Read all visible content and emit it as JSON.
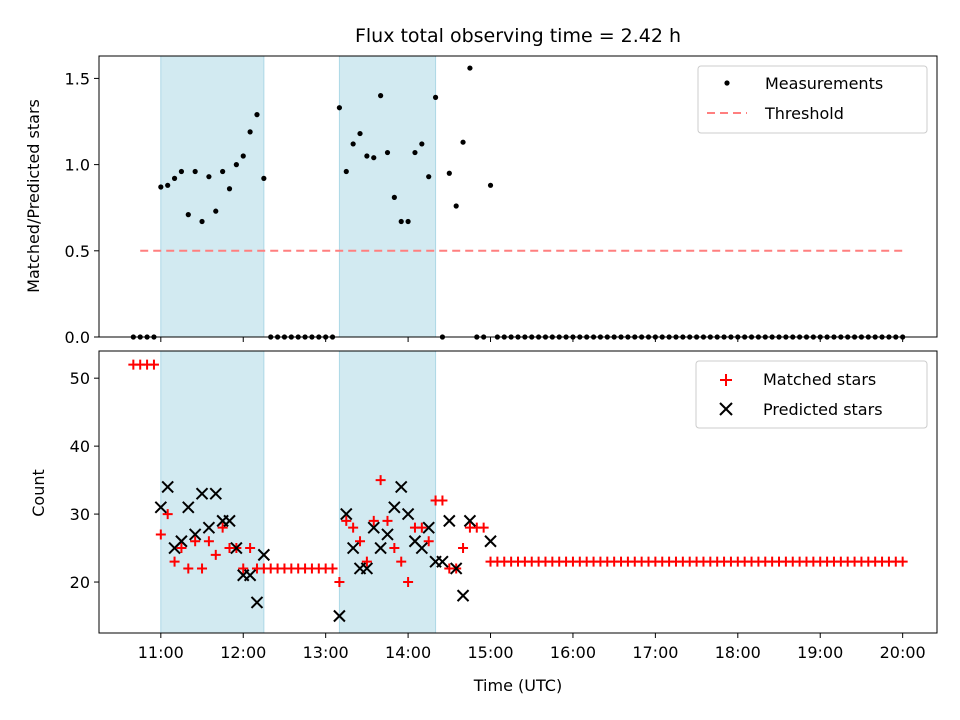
{
  "chart_data": [
    {
      "type": "scatter",
      "title": "Flux total observing time = 2.42 h",
      "xlabel": "",
      "ylabel": "Matched/Predicted stars",
      "ylim": [
        0,
        1.63
      ],
      "xlim": [
        "10:15",
        "20:25"
      ],
      "yticks": [
        "0.0",
        "0.5",
        "1.0",
        "1.5"
      ],
      "highlight_spans": [
        [
          "11:00",
          "12:15"
        ],
        [
          "13:10",
          "14:20"
        ]
      ],
      "highlight_color": "#add8e6",
      "legend_position": "top-right",
      "threshold": 0.5,
      "series": [
        {
          "name": "Measurements",
          "color": "#000000",
          "marker": "dot",
          "x": [
            "10:40",
            "10:45",
            "10:50",
            "10:55",
            "11:00",
            "11:05",
            "11:10",
            "11:15",
            "11:20",
            "11:25",
            "11:30",
            "11:35",
            "11:40",
            "11:45",
            "11:50",
            "11:55",
            "12:00",
            "12:05",
            "12:10",
            "12:15",
            "12:20",
            "12:25",
            "12:30",
            "12:35",
            "12:40",
            "12:45",
            "12:50",
            "12:55",
            "13:00",
            "13:05",
            "13:10",
            "13:15",
            "13:20",
            "13:25",
            "13:30",
            "13:35",
            "13:40",
            "13:45",
            "13:50",
            "13:55",
            "14:00",
            "14:05",
            "14:10",
            "14:15",
            "14:20",
            "14:25",
            "14:30",
            "14:35",
            "14:40",
            "14:45",
            "14:50",
            "14:55",
            "15:00",
            "15:05",
            "15:10",
            "15:15",
            "15:20",
            "15:25",
            "15:30",
            "15:35",
            "15:40",
            "15:45",
            "15:50",
            "15:55",
            "16:00",
            "16:05",
            "16:10",
            "16:15",
            "16:20",
            "16:25",
            "16:30",
            "16:35",
            "16:40",
            "16:45",
            "16:50",
            "16:55",
            "17:00",
            "17:05",
            "17:10",
            "17:15",
            "17:20",
            "17:25",
            "17:30",
            "17:35",
            "17:40",
            "17:45",
            "17:50",
            "17:55",
            "18:00",
            "18:05",
            "18:10",
            "18:15",
            "18:20",
            "18:25",
            "18:30",
            "18:35",
            "18:40",
            "18:45",
            "18:50",
            "18:55",
            "19:00",
            "19:05",
            "19:10",
            "19:15",
            "19:20",
            "19:25",
            "19:30",
            "19:35",
            "19:40",
            "19:45",
            "19:50",
            "19:55",
            "20:00"
          ],
          "y": [
            0,
            0,
            0,
            0,
            0.87,
            0.88,
            0.92,
            0.96,
            0.71,
            0.96,
            0.67,
            0.93,
            0.73,
            0.96,
            0.86,
            1.0,
            1.05,
            1.19,
            1.29,
            0.92,
            0,
            0,
            0,
            0,
            0,
            0,
            0,
            0,
            0,
            0,
            1.33,
            0.96,
            1.12,
            1.18,
            1.05,
            1.04,
            1.4,
            1.07,
            0.81,
            0.67,
            0.67,
            1.07,
            1.12,
            0.93,
            1.39,
            0,
            0.95,
            0.76,
            1.13,
            1.56,
            0,
            0,
            0.88,
            0,
            0,
            0,
            0,
            0,
            0,
            0,
            0,
            0,
            0,
            0,
            0,
            0,
            0,
            0,
            0,
            0,
            0,
            0,
            0,
            0,
            0,
            0,
            0,
            0,
            0,
            0,
            0,
            0,
            0,
            0,
            0,
            0,
            0,
            0,
            0,
            0,
            0,
            0,
            0,
            0,
            0,
            0,
            0,
            0,
            0,
            0,
            0,
            0,
            0,
            0,
            0,
            0,
            0,
            0,
            0,
            0,
            0,
            0,
            0
          ]
        },
        {
          "name": "Threshold",
          "color": "#ff7f7f",
          "marker": "dashed-line",
          "x": [
            "10:45",
            "20:00"
          ],
          "y": [
            0.5,
            0.5
          ]
        }
      ]
    },
    {
      "type": "scatter",
      "title": "",
      "xlabel": "Time (UTC)",
      "ylabel": "Count",
      "ylim": [
        12.5,
        54
      ],
      "xlim": [
        "10:15",
        "20:25"
      ],
      "yticks": [
        "20",
        "30",
        "40",
        "50"
      ],
      "xticks": [
        "11:00",
        "12:00",
        "13:00",
        "14:00",
        "15:00",
        "16:00",
        "17:00",
        "18:00",
        "19:00",
        "20:00"
      ],
      "highlight_spans": [
        [
          "11:00",
          "12:15"
        ],
        [
          "13:10",
          "14:20"
        ]
      ],
      "highlight_color": "#add8e6",
      "legend_position": "top-right",
      "series": [
        {
          "name": "Matched stars",
          "color": "#ff0000",
          "marker": "plus",
          "x": [
            "10:40",
            "10:45",
            "10:50",
            "10:55",
            "11:00",
            "11:05",
            "11:10",
            "11:15",
            "11:20",
            "11:25",
            "11:30",
            "11:35",
            "11:40",
            "11:45",
            "11:50",
            "11:55",
            "12:00",
            "12:05",
            "12:10",
            "12:15",
            "12:20",
            "12:25",
            "12:30",
            "12:35",
            "12:40",
            "12:45",
            "12:50",
            "12:55",
            "13:00",
            "13:05",
            "13:10",
            "13:15",
            "13:20",
            "13:25",
            "13:30",
            "13:35",
            "13:40",
            "13:45",
            "13:50",
            "13:55",
            "14:00",
            "14:05",
            "14:10",
            "14:15",
            "14:20",
            "14:25",
            "14:30",
            "14:35",
            "14:40",
            "14:45",
            "14:50",
            "14:55",
            "15:00",
            "15:05",
            "15:10",
            "15:15",
            "15:20",
            "15:25",
            "15:30",
            "15:35",
            "15:40",
            "15:45",
            "15:50",
            "15:55",
            "16:00",
            "16:05",
            "16:10",
            "16:15",
            "16:20",
            "16:25",
            "16:30",
            "16:35",
            "16:40",
            "16:45",
            "16:50",
            "16:55",
            "17:00",
            "17:05",
            "17:10",
            "17:15",
            "17:20",
            "17:25",
            "17:30",
            "17:35",
            "17:40",
            "17:45",
            "17:50",
            "17:55",
            "18:00",
            "18:05",
            "18:10",
            "18:15",
            "18:20",
            "18:25",
            "18:30",
            "18:35",
            "18:40",
            "18:45",
            "18:50",
            "18:55",
            "19:00",
            "19:05",
            "19:10",
            "19:15",
            "19:20",
            "19:25",
            "19:30",
            "19:35",
            "19:40",
            "19:45",
            "19:50",
            "19:55",
            "20:00"
          ],
          "y": [
            52,
            52,
            52,
            52,
            27,
            30,
            23,
            25,
            22,
            26,
            22,
            26,
            24,
            28,
            25,
            25,
            22,
            25,
            22,
            22,
            22,
            22,
            22,
            22,
            22,
            22,
            22,
            22,
            22,
            22,
            20,
            29,
            28,
            26,
            23,
            29,
            35,
            29,
            25,
            23,
            20,
            28,
            28,
            26,
            32,
            32,
            22,
            22,
            25,
            28,
            28,
            28,
            23,
            23,
            23,
            23,
            23,
            23,
            23,
            23,
            23,
            23,
            23,
            23,
            23,
            23,
            23,
            23,
            23,
            23,
            23,
            23,
            23,
            23,
            23,
            23,
            23,
            23,
            23,
            23,
            23,
            23,
            23,
            23,
            23,
            23,
            23,
            23,
            23,
            23,
            23,
            23,
            23,
            23,
            23,
            23,
            23,
            23,
            23,
            23,
            23,
            23,
            23,
            23,
            23,
            23,
            23,
            23,
            23,
            23,
            23,
            23,
            23
          ]
        },
        {
          "name": "Predicted stars",
          "color": "#000000",
          "marker": "x",
          "x": [
            "11:00",
            "11:05",
            "11:10",
            "11:15",
            "11:20",
            "11:25",
            "11:30",
            "11:35",
            "11:40",
            "11:45",
            "11:50",
            "11:55",
            "12:00",
            "12:05",
            "12:10",
            "12:15",
            "13:10",
            "13:15",
            "13:20",
            "13:25",
            "13:30",
            "13:35",
            "13:40",
            "13:45",
            "13:50",
            "13:55",
            "14:00",
            "14:05",
            "14:10",
            "14:15",
            "14:20",
            "14:25",
            "14:30",
            "14:35",
            "14:40",
            "14:45",
            "15:00"
          ],
          "y": [
            31,
            34,
            25,
            26,
            31,
            27,
            33,
            28,
            33,
            29,
            29,
            25,
            21,
            21,
            17,
            24,
            15,
            30,
            25,
            22,
            22,
            28,
            25,
            27,
            31,
            34,
            30,
            26,
            25,
            28,
            23,
            23,
            29,
            22,
            18,
            29,
            26
          ]
        }
      ]
    }
  ]
}
